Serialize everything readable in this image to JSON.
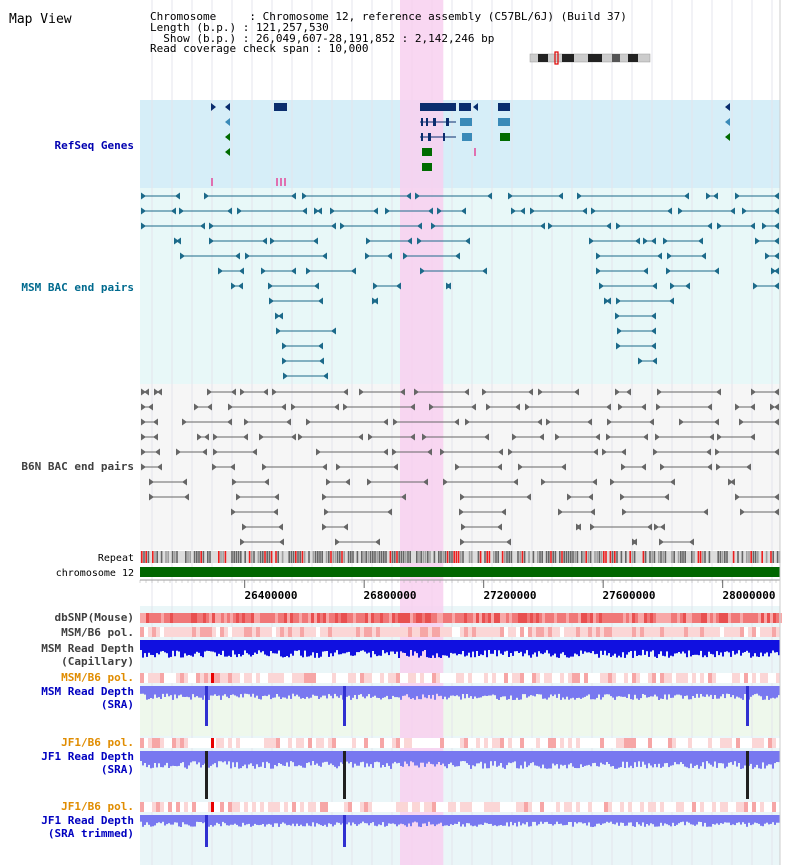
{
  "title": "Map View",
  "info": {
    "lines": [
      "Chromosome     : Chromosome 12, reference assembly (C57BL/6J) (Build 37)",
      "Length (b.p.) : 121,257,530",
      "  Show (b.p.) : 26,049,607-28,191,852 : 2,142,246 bp",
      "Read coverage check span : 10,000"
    ]
  },
  "colors": {
    "refseq_bg": "#d6eef8",
    "msm_bg": "#e8f8f8",
    "b6n_bg": "#f6f6f6",
    "highlight": "#f8d0f0",
    "refseq_label": "#0000b0",
    "msm_label": "#006a8e",
    "b6n_label": "#404040",
    "pol_label": "#e08c00",
    "depth_label": "#0000c0",
    "gene_dark": "#0a2d6e",
    "gene_mid": "#3a8ab8",
    "gene_green": "#006b00",
    "msm_pair": "#1c6a8a",
    "b6n_pair": "#666666",
    "chrom_bar": "#006600",
    "snp": "#f07878",
    "pol": "#f8c0c0",
    "depth_cap": "#1010e0",
    "depth_sra": "#7878f0",
    "depth_spike": "#202020"
  },
  "tracks": {
    "refseq": "RefSeq Genes",
    "msm_bac": "MSM BAC end pairs",
    "b6n_bac": "B6N BAC end pairs",
    "repeat": "Repeat",
    "chromosome": "chromosome 12",
    "dbsnp": "dbSNP(Mouse)",
    "msm_b6_pol_1": "MSM/B6 pol.",
    "msm_depth_cap": [
      "MSM Read Depth",
      "(Capillary)"
    ],
    "msm_b6_pol_2": "MSM/B6 pol.",
    "msm_depth_sra": [
      "MSM Read Depth",
      "(SRA)"
    ],
    "jf1_b6_pol_1": "JF1/B6 pol.",
    "jf1_depth_sra": [
      "JF1 Read Depth",
      "(SRA)"
    ],
    "jf1_b6_pol_2": "JF1/B6 pol.",
    "jf1_depth_trim": [
      "JF1 Read Depth",
      "(SRA trimmed)"
    ]
  },
  "axis": {
    "start": 26049607,
    "end": 28191852,
    "ticks": [
      {
        "pos": 26400000,
        "label": "26400000"
      },
      {
        "pos": 26800000,
        "label": "26800000"
      },
      {
        "pos": 27200000,
        "label": "27200000"
      },
      {
        "pos": 27600000,
        "label": "27600000"
      },
      {
        "pos": 28000000,
        "label": "28000000"
      }
    ],
    "highlight_range": [
      26920000,
      27065000
    ]
  }
}
